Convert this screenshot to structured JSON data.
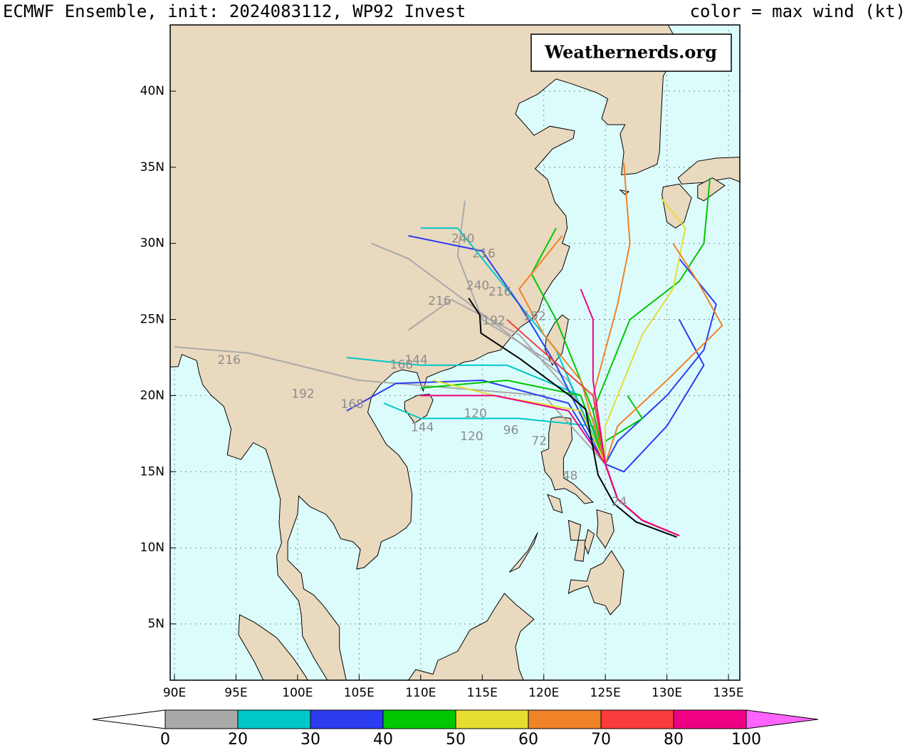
{
  "title": "ECMWF Ensemble, init: 2024083112, WP92 Invest",
  "legend_note": "color = max wind (kt)",
  "watermark": "Weathernerds.org",
  "map": {
    "xticks": [
      {
        "value": 90,
        "label": "90E"
      },
      {
        "value": 95,
        "label": "95E"
      },
      {
        "value": 100,
        "label": "100E"
      },
      {
        "value": 105,
        "label": "105E"
      },
      {
        "value": 110,
        "label": "110E"
      },
      {
        "value": 115,
        "label": "115E"
      },
      {
        "value": 120,
        "label": "120E"
      },
      {
        "value": 125,
        "label": "125E"
      },
      {
        "value": 130,
        "label": "130E"
      },
      {
        "value": 135,
        "label": "135E"
      }
    ],
    "yticks": [
      {
        "value": 5,
        "label": "5N"
      },
      {
        "value": 10,
        "label": "10N"
      },
      {
        "value": 15,
        "label": "15N"
      },
      {
        "value": 20,
        "label": "20N"
      },
      {
        "value": 25,
        "label": "25N"
      },
      {
        "value": 30,
        "label": "30N"
      },
      {
        "value": 35,
        "label": "35N"
      },
      {
        "value": 40,
        "label": "40N"
      }
    ],
    "hour_labels": [
      "240",
      "216",
      "240",
      "216",
      "192",
      "168",
      "144",
      "120",
      "96",
      "72",
      "48",
      "24",
      "216",
      "192",
      "168",
      "144",
      "120",
      "216",
      "192"
    ]
  },
  "colorbar": {
    "labels": [
      0,
      20,
      30,
      40,
      50,
      60,
      70,
      80,
      100
    ],
    "colors": [
      "#a9a9a9",
      "#00c8c8",
      "#2b3cf0",
      "#00c800",
      "#e6dc32",
      "#f08228",
      "#fa3c3c",
      "#f00082",
      "#ff64ff"
    ]
  }
}
